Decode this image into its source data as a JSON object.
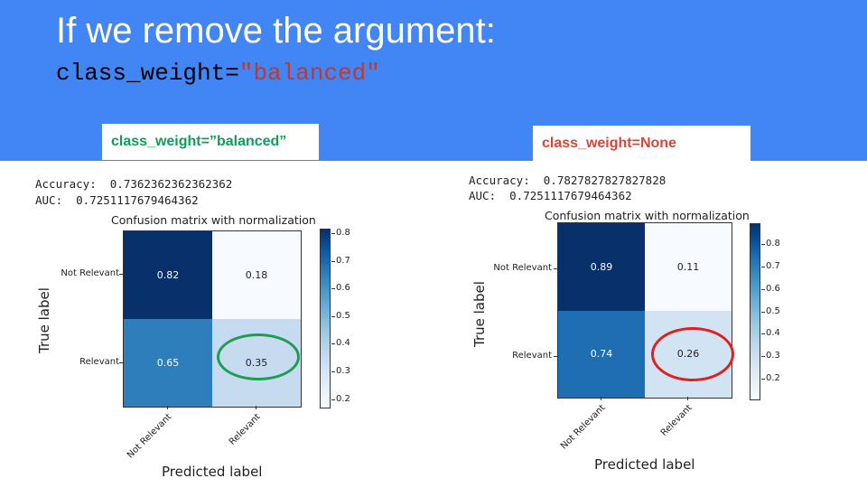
{
  "slide": {
    "title": "If we remove the argument:",
    "code_prefix": "class_weight=",
    "code_string": "\"balanced\"",
    "header_color": "#4285f4"
  },
  "panels": [
    {
      "tag": "class_weight=”balanced”",
      "tag_color": "#0f9d58",
      "accuracy_line": "Accuracy:  0.7362362362362362",
      "auc_line": "AUC:  0.7251117679464362",
      "matrix_title": "Confusion matrix with normalization",
      "ylabel": "True label",
      "xlabel": "Predicted label",
      "row_labels": [
        "Not Relevant",
        "Relevant"
      ],
      "col_labels": [
        "Not Relevant",
        "Relevant"
      ],
      "cells": [
        "0.82",
        "0.18",
        "0.65",
        "0.35"
      ],
      "colorbar_ticks": [
        "0.8",
        "0.7",
        "0.6",
        "0.5",
        "0.4",
        "0.3",
        "0.2"
      ],
      "highlight_color": "#1e9e50"
    },
    {
      "tag": "class_weight=None",
      "tag_color": "#db4437",
      "accuracy_line": "Accuracy:  0.7827827827827828",
      "auc_line": "AUC:  0.7251117679464362",
      "matrix_title": "Confusion matrix with normalization",
      "ylabel": "True label",
      "xlabel": "Predicted label",
      "row_labels": [
        "Not Relevant",
        "Relevant"
      ],
      "col_labels": [
        "Not Relevant",
        "Relevant"
      ],
      "cells": [
        "0.89",
        "0.11",
        "0.74",
        "0.26"
      ],
      "colorbar_ticks": [
        "0.8",
        "0.7",
        "0.6",
        "0.5",
        "0.4",
        "0.3",
        "0.2"
      ],
      "highlight_color": "#e02020"
    }
  ],
  "chart_data": [
    {
      "type": "heatmap",
      "title": "Confusion matrix with normalization",
      "xlabel": "Predicted label",
      "ylabel": "True label",
      "x_categories": [
        "Not Relevant",
        "Relevant"
      ],
      "y_categories": [
        "Not Relevant",
        "Relevant"
      ],
      "values": [
        [
          0.82,
          0.18
        ],
        [
          0.65,
          0.35
        ]
      ],
      "colormap": "Blues",
      "colorbar_range": [
        0.18,
        0.82
      ],
      "annotation": "accuracy 0.7362362362362362, AUC 0.7251117679464362",
      "highlighted_cell": "Relevant/Relevant"
    },
    {
      "type": "heatmap",
      "title": "Confusion matrix with normalization",
      "xlabel": "Predicted label",
      "ylabel": "True label",
      "x_categories": [
        "Not Relevant",
        "Relevant"
      ],
      "y_categories": [
        "Not Relevant",
        "Relevant"
      ],
      "values": [
        [
          0.89,
          0.11
        ],
        [
          0.74,
          0.26
        ]
      ],
      "colormap": "Blues",
      "colorbar_range": [
        0.11,
        0.89
      ],
      "annotation": "accuracy 0.7827827827827828, AUC 0.7251117679464362",
      "highlighted_cell": "Relevant/Relevant"
    }
  ]
}
